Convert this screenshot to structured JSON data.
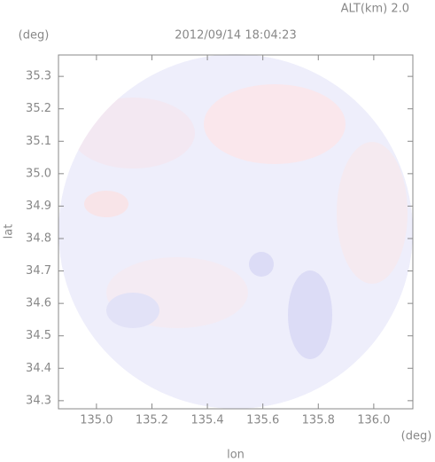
{
  "chart_data": {
    "type": "radar-map",
    "title": "2012/09/14 18:04:23",
    "altitude_label": "ALT(km) 2.0",
    "y_unit": "(deg)",
    "x_unit": "(deg)",
    "xlabel": "lon",
    "ylabel": "lat",
    "xlim": [
      134.863,
      136.141
    ],
    "ylim": [
      34.275,
      35.366
    ],
    "xticks": [
      {
        "value": 135,
        "label": "135.0"
      },
      135.2,
      135.4,
      135.6,
      135.8,
      {
        "value": 136,
        "label": "136.0"
      }
    ],
    "yticks": [
      34.3,
      34.4,
      34.5,
      34.6,
      34.7,
      34.8,
      34.9,
      {
        "value": 35,
        "label": "35.0"
      },
      35.1,
      35.2,
      35.3
    ]
  }
}
